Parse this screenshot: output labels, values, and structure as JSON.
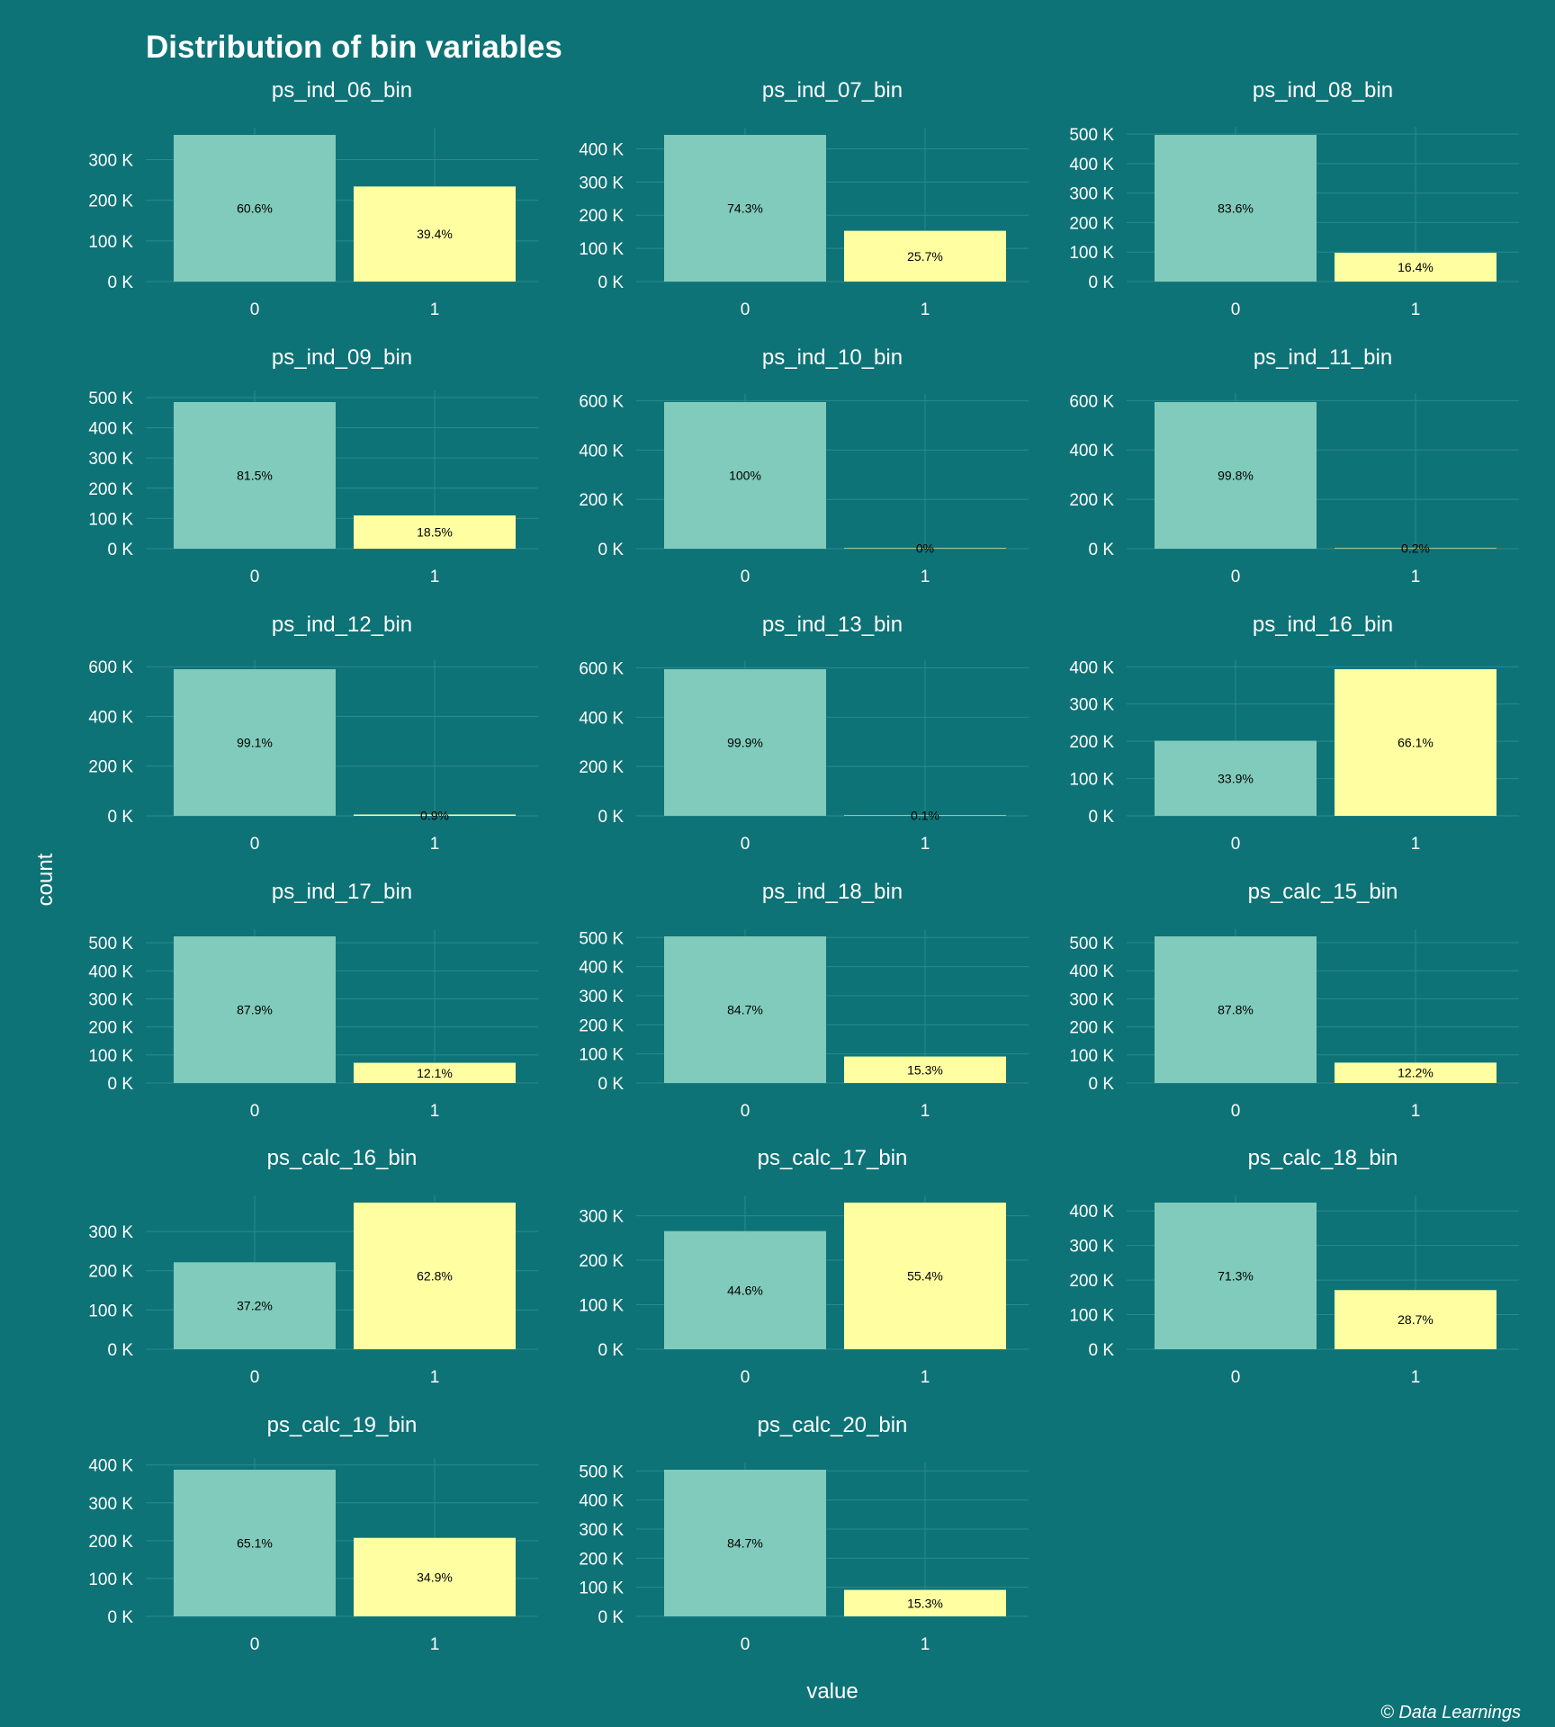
{
  "chart_data": {
    "type": "bar",
    "title": "Distribution of bin variables",
    "xlabel": "value",
    "ylabel": "count",
    "caption": "© Data Learnings",
    "colors": {
      "bar_0": "#80cbbb",
      "bar_1": "#ffffa2",
      "background": "#0e7377",
      "grid": "#2a8a8d"
    },
    "categories": [
      "0",
      "1"
    ],
    "facets": [
      {
        "name": "ps_ind_06_bin",
        "values": [
          361000,
          234000
        ],
        "labels": [
          "60.6%",
          "39.4%"
        ],
        "yticks": [
          0,
          100000,
          200000,
          300000
        ],
        "ytick_labels": [
          "0 K",
          "100 K",
          "200 K",
          "300 K"
        ]
      },
      {
        "name": "ps_ind_07_bin",
        "values": [
          442000,
          153000
        ],
        "labels": [
          "74.3%",
          "25.7%"
        ],
        "yticks": [
          0,
          100000,
          200000,
          300000,
          400000
        ],
        "ytick_labels": [
          "0 K",
          "100 K",
          "200 K",
          "300 K",
          "400 K"
        ]
      },
      {
        "name": "ps_ind_08_bin",
        "values": [
          497000,
          97500
        ],
        "labels": [
          "83.6%",
          "16.4%"
        ],
        "yticks": [
          0,
          100000,
          200000,
          300000,
          400000,
          500000
        ],
        "ytick_labels": [
          "0 K",
          "100 K",
          "200 K",
          "300 K",
          "400 K",
          "500 K"
        ]
      },
      {
        "name": "ps_ind_09_bin",
        "values": [
          485000,
          110000
        ],
        "labels": [
          "81.5%",
          "18.5%"
        ],
        "yticks": [
          0,
          100000,
          200000,
          300000,
          400000,
          500000
        ],
        "ytick_labels": [
          "0 K",
          "100 K",
          "200 K",
          "300 K",
          "400 K",
          "500 K"
        ]
      },
      {
        "name": "ps_ind_10_bin",
        "values": [
          595000,
          200
        ],
        "labels": [
          "100%",
          "0%"
        ],
        "yticks": [
          0,
          200000,
          400000,
          600000
        ],
        "ytick_labels": [
          "0 K",
          "200 K",
          "400 K",
          "600 K"
        ]
      },
      {
        "name": "ps_ind_11_bin",
        "values": [
          594000,
          1000
        ],
        "labels": [
          "99.8%",
          "0.2%"
        ],
        "yticks": [
          0,
          200000,
          400000,
          600000
        ],
        "ytick_labels": [
          "0 K",
          "200 K",
          "400 K",
          "600 K"
        ]
      },
      {
        "name": "ps_ind_12_bin",
        "values": [
          590000,
          5400
        ],
        "labels": [
          "99.1%",
          "0.9%"
        ],
        "yticks": [
          0,
          200000,
          400000,
          600000
        ],
        "ytick_labels": [
          "0 K",
          "200 K",
          "400 K",
          "600 K"
        ]
      },
      {
        "name": "ps_ind_13_bin",
        "values": [
          594500,
          600
        ],
        "labels": [
          "99.9%",
          "0.1%"
        ],
        "yticks": [
          0,
          200000,
          400000,
          600000
        ],
        "ytick_labels": [
          "0 K",
          "200 K",
          "400 K",
          "600 K"
        ]
      },
      {
        "name": "ps_ind_16_bin",
        "values": [
          201500,
          393500
        ],
        "labels": [
          "33.9%",
          "66.1%"
        ],
        "yticks": [
          0,
          100000,
          200000,
          300000,
          400000
        ],
        "ytick_labels": [
          "0 K",
          "100 K",
          "200 K",
          "300 K",
          "400 K"
        ]
      },
      {
        "name": "ps_ind_17_bin",
        "values": [
          523000,
          72000
        ],
        "labels": [
          "87.9%",
          "12.1%"
        ],
        "yticks": [
          0,
          100000,
          200000,
          300000,
          400000,
          500000
        ],
        "ytick_labels": [
          "0 K",
          "100 K",
          "200 K",
          "300 K",
          "400 K",
          "500 K"
        ]
      },
      {
        "name": "ps_ind_18_bin",
        "values": [
          504000,
          91000
        ],
        "labels": [
          "84.7%",
          "15.3%"
        ],
        "yticks": [
          0,
          100000,
          200000,
          300000,
          400000,
          500000
        ],
        "ytick_labels": [
          "0 K",
          "100 K",
          "200 K",
          "300 K",
          "400 K",
          "500 K"
        ]
      },
      {
        "name": "ps_calc_15_bin",
        "values": [
          522500,
          72500
        ],
        "labels": [
          "87.8%",
          "12.2%"
        ],
        "yticks": [
          0,
          100000,
          200000,
          300000,
          400000,
          500000
        ],
        "ytick_labels": [
          "0 K",
          "100 K",
          "200 K",
          "300 K",
          "400 K",
          "500 K"
        ]
      },
      {
        "name": "ps_calc_16_bin",
        "values": [
          221500,
          373500
        ],
        "labels": [
          "37.2%",
          "62.8%"
        ],
        "yticks": [
          0,
          100000,
          200000,
          300000
        ],
        "ytick_labels": [
          "0 K",
          "100 K",
          "200 K",
          "300 K"
        ]
      },
      {
        "name": "ps_calc_17_bin",
        "values": [
          265500,
          329500
        ],
        "labels": [
          "44.6%",
          "55.4%"
        ],
        "yticks": [
          0,
          100000,
          200000,
          300000
        ],
        "ytick_labels": [
          "0 K",
          "100 K",
          "200 K",
          "300 K"
        ]
      },
      {
        "name": "ps_calc_18_bin",
        "values": [
          424000,
          171000
        ],
        "labels": [
          "71.3%",
          "28.7%"
        ],
        "yticks": [
          0,
          100000,
          200000,
          300000,
          400000
        ],
        "ytick_labels": [
          "0 K",
          "100 K",
          "200 K",
          "300 K",
          "400 K"
        ]
      },
      {
        "name": "ps_calc_19_bin",
        "values": [
          387500,
          207500
        ],
        "labels": [
          "65.1%",
          "34.9%"
        ],
        "yticks": [
          0,
          100000,
          200000,
          300000,
          400000
        ],
        "ytick_labels": [
          "0 K",
          "100 K",
          "200 K",
          "300 K",
          "400 K"
        ]
      },
      {
        "name": "ps_calc_20_bin",
        "values": [
          504000,
          91000
        ],
        "labels": [
          "84.7%",
          "15.3%"
        ],
        "yticks": [
          0,
          100000,
          200000,
          300000,
          400000,
          500000
        ],
        "ytick_labels": [
          "0 K",
          "100 K",
          "200 K",
          "300 K",
          "400 K",
          "500 K"
        ]
      }
    ]
  }
}
